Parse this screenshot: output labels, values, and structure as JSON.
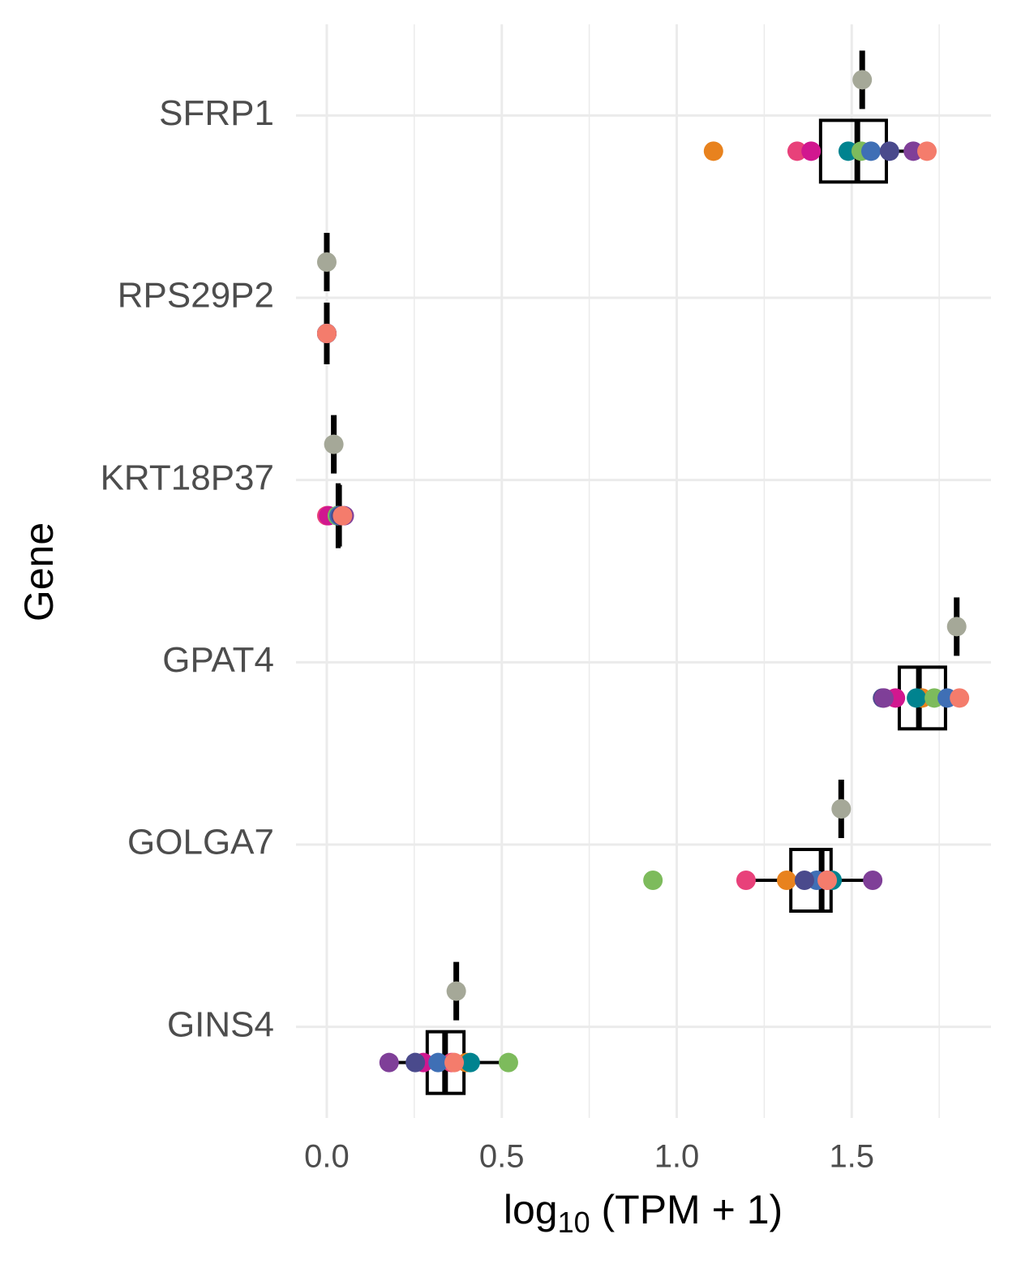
{
  "chart_data": {
    "type": "box_dot",
    "y_label": "Gene",
    "x_label": {
      "base": "log",
      "subscript": "10",
      "rest": " (TPM + 1)"
    },
    "categories": [
      "SFRP1",
      "RPS29P2",
      "KRT18P37",
      "GPAT4",
      "GOLGA7",
      "GINS4"
    ],
    "reference_color": "#a5a898",
    "reference_values": [
      1.53,
      0,
      0.02,
      1.8,
      1.47,
      0.37
    ],
    "sample_colors": [
      "#e8821e",
      "#e8417a",
      "#d1178f",
      "#00838f",
      "#7dbb5c",
      "#3f6fb5",
      "#4a4a8c",
      "#7f3f98",
      "#f47c6c"
    ],
    "sample_values": [
      [
        1.105,
        1.344,
        1.384,
        1.49,
        1.527,
        1.555,
        1.608,
        1.676,
        1.715
      ],
      [
        0,
        0,
        0,
        0,
        0,
        0,
        0,
        0,
        0
      ],
      [
        0.03,
        0,
        0.005,
        0.03,
        0.03,
        0.035,
        0.04,
        0.05,
        0.045
      ],
      [
        1.701,
        1.592,
        1.625,
        1.685,
        1.736,
        1.773,
        1.588,
        1.592,
        1.808
      ],
      [
        1.314,
        1.198,
        1.43,
        1.444,
        0.932,
        1.4,
        1.365,
        1.56,
        1.43
      ],
      [
        0.399,
        0.357,
        0.276,
        0.41,
        0.519,
        0.318,
        0.253,
        0.178,
        0.364
      ]
    ],
    "box_stats": [
      {
        "low": 1.344,
        "q1": 1.411,
        "median": 1.516,
        "q3": 1.599,
        "high": 1.715
      },
      {
        "low": 0,
        "q1": 0,
        "median": 0,
        "q3": 0,
        "high": 0
      },
      {
        "low": 0.03,
        "q1": 0.03,
        "median": 0.035,
        "q3": 0.035,
        "high": 0.04
      },
      {
        "low": 1.588,
        "q1": 1.636,
        "median": 1.692,
        "q3": 1.768,
        "high": 1.808
      },
      {
        "low": 1.198,
        "q1": 1.326,
        "median": 1.414,
        "q3": 1.441,
        "high": 1.56
      },
      {
        "low": 0.178,
        "q1": 0.287,
        "median": 0.338,
        "q3": 0.392,
        "high": 0.519
      }
    ],
    "xlim": [
      -0.088,
      1.898
    ],
    "xticks": [
      {
        "value": 0,
        "label": "0.0"
      },
      0.5,
      {
        "value": 1,
        "label": "1.0"
      },
      1.5
    ],
    "xminor": [
      0.25,
      0.75,
      1.25,
      1.75
    ],
    "grid": true
  }
}
